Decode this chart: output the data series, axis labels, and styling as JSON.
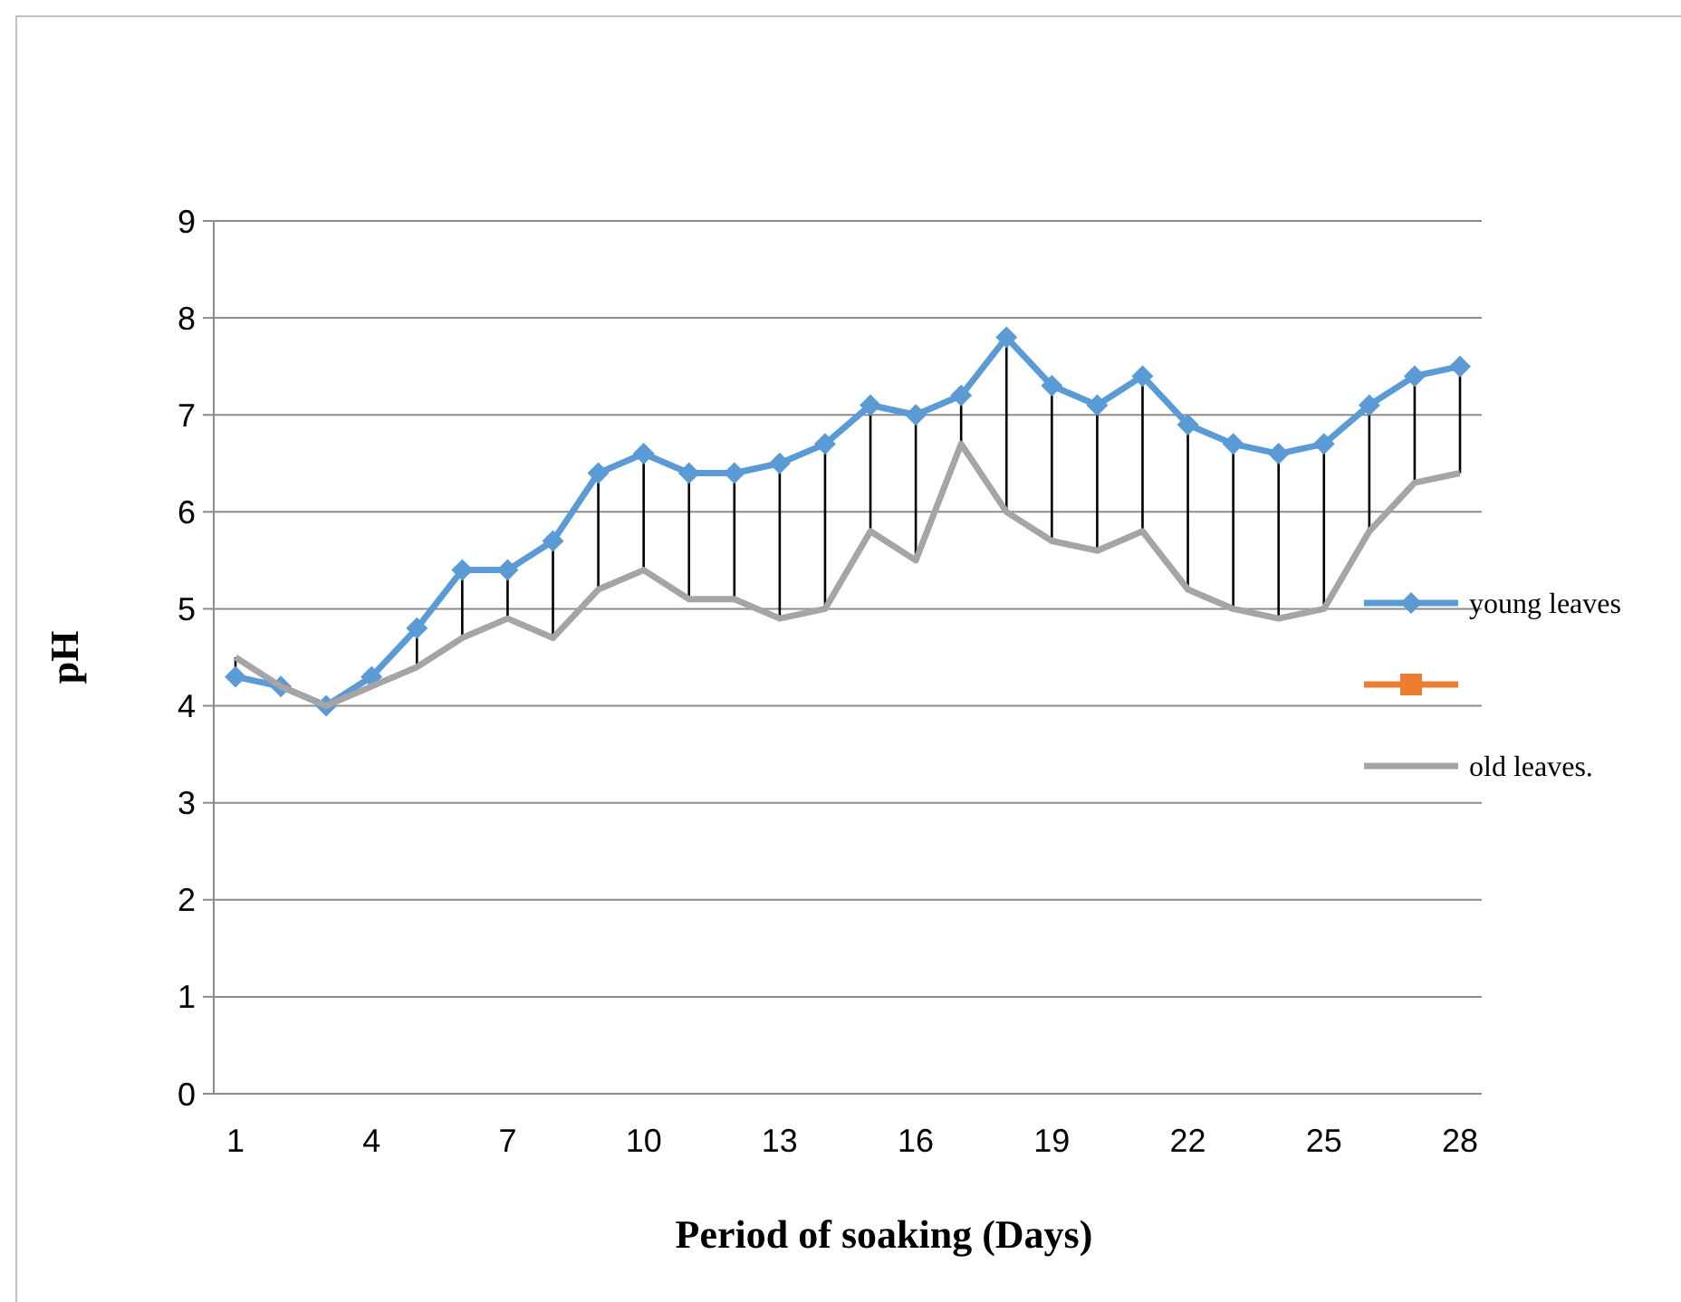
{
  "chart_data": {
    "type": "line",
    "xlabel": "Period of soaking (Days)",
    "ylabel": "pH",
    "categories": [
      "1",
      null,
      null,
      "4",
      null,
      null,
      "7",
      null,
      null,
      "10",
      null,
      null,
      "13",
      null,
      null,
      "16",
      null,
      null,
      "19",
      null,
      null,
      "22",
      null,
      null,
      "25",
      null,
      null,
      "28"
    ],
    "series": [
      {
        "name": "young leaves",
        "color": "#5b9bd5",
        "marker": "diamond",
        "values": [
          4.3,
          4.2,
          4.0,
          4.3,
          4.8,
          5.4,
          5.4,
          5.7,
          6.4,
          6.6,
          6.4,
          6.4,
          6.5,
          6.7,
          7.1,
          7.0,
          7.2,
          7.8,
          7.3,
          7.1,
          7.4,
          6.9,
          6.7,
          6.6,
          6.7,
          7.1,
          7.4,
          7.5
        ]
      },
      {
        "color": "#ed7d31",
        "marker": "square",
        "values": [
          null,
          null,
          null,
          null,
          null,
          null,
          null,
          null,
          null,
          null,
          null,
          null,
          null,
          null,
          null,
          null,
          null,
          null,
          null,
          null,
          null,
          null,
          null,
          null,
          null,
          null,
          null,
          null
        ]
      },
      {
        "name": "old leaves.",
        "color": "#a5a5a5",
        "marker": "none",
        "values": [
          4.5,
          4.2,
          4.0,
          4.2,
          4.4,
          4.7,
          4.9,
          4.7,
          5.2,
          5.4,
          5.1,
          5.1,
          4.9,
          5.0,
          5.8,
          5.5,
          6.7,
          6.0,
          5.7,
          5.6,
          5.8,
          5.2,
          5.0,
          4.9,
          5.0,
          5.8,
          6.3,
          6.4
        ]
      }
    ],
    "ylim": [
      0,
      9
    ],
    "yticks": [
      0,
      1,
      2,
      3,
      4,
      5,
      6,
      7,
      8,
      9
    ],
    "grid": "y",
    "legend": "right"
  }
}
